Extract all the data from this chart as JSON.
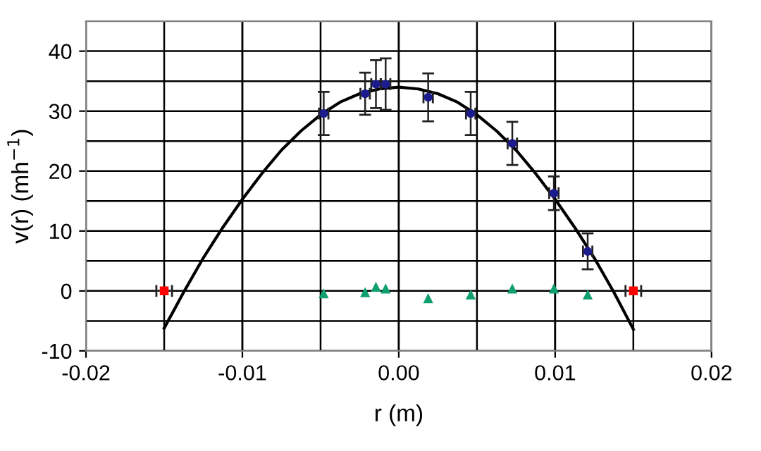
{
  "chart_data": {
    "type": "scatter",
    "xlabel": "r (m)",
    "ylabel": "v(r) (mh$^{−1}$)",
    "xlim": [
      -0.02,
      0.02
    ],
    "xticks": [
      {
        "value": -0.02,
        "label": "-0.02"
      },
      {
        "value": -0.01,
        "label": "-0.01"
      },
      {
        "value": 0,
        "label": "0.00"
      },
      {
        "value": 0.01,
        "label": "0.01"
      },
      {
        "value": 0.02,
        "label": "0.02"
      }
    ],
    "ylim": [
      -10,
      45
    ],
    "yticks": [
      -10,
      0,
      10,
      20,
      30,
      40
    ],
    "grid": true,
    "legend": false,
    "series": [
      {
        "type": "line",
        "color": "#000000",
        "marker": "none",
        "line_style": "solid",
        "x": [
          -0.015,
          -0.01375,
          -0.0125,
          -0.01125,
          -0.01,
          -0.00875,
          -0.0075,
          -0.00625,
          -0.005,
          -0.00375,
          -0.0025,
          -0.00125,
          0,
          0.00125,
          0.0025,
          0.00375,
          0.005,
          0.00625,
          0.0075,
          0.00875,
          0.01,
          0.01125,
          0.0125,
          0.01375,
          0.015
        ],
        "values": [
          -6.2,
          -0.2,
          5.5,
          10.6,
          15.3,
          19.6,
          23.5,
          26.7,
          29.4,
          31.5,
          32.9,
          33.7,
          34,
          33.7,
          32.9,
          31.5,
          29.4,
          26.7,
          23.5,
          19.6,
          15.3,
          10.6,
          5.5,
          -0.2,
          -6.4
        ]
      },
      {
        "color": "#1c1c8c",
        "marker": "circle",
        "x": [
          -0.0048,
          -0.00215,
          -0.00146,
          -0.00084,
          0.00188,
          0.0046,
          0.00726,
          0.00992,
          0.01208
        ],
        "values": [
          29.6,
          32.9,
          34.5,
          34.5,
          32.3,
          29.6,
          24.6,
          16.3,
          6.6
        ],
        "errors": [
          3.6,
          3.5,
          4,
          4.3,
          4,
          3.6,
          3.6,
          2.8,
          3
        ],
        "xerrors": [
          0.0003,
          0.0003,
          0.0003,
          0.0003,
          0.0003,
          0.0003,
          0.0003,
          0.0003,
          0.0003
        ]
      },
      {
        "color": "#10a070",
        "marker": "triangle",
        "x": [
          -0.0048,
          -0.00215,
          -0.00146,
          -0.00084,
          0.00188,
          0.0046,
          0.00726,
          0.00992,
          0.01208
        ],
        "values": [
          -0.5,
          -0.3,
          0.6,
          0.3,
          -1.3,
          -0.7,
          0.3,
          0.3,
          -0.7
        ]
      },
      {
        "color": "#ff0000",
        "marker": "square",
        "x": [
          -0.015,
          0.015
        ],
        "values": [
          0,
          0
        ],
        "xerrors": [
          0.0005,
          0.0005
        ]
      }
    ]
  }
}
